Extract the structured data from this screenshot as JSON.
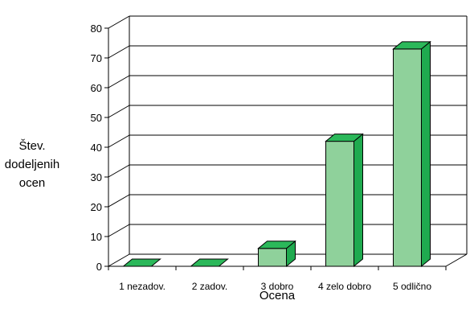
{
  "chart_data": {
    "type": "bar",
    "categories": [
      "1 nezadov.",
      "2 zadov.",
      "3 dobro",
      "4 zelo dobro",
      "5 odlično"
    ],
    "values": [
      0,
      0,
      6,
      42,
      73
    ],
    "xlabel": "Ocena",
    "ylabel": [
      "Štev.",
      "dodeljenih",
      "ocen"
    ],
    "ylim": [
      0,
      80
    ],
    "yticks": [
      0,
      10,
      20,
      30,
      40,
      50,
      60,
      70,
      80
    ],
    "grid": true,
    "three_d": true,
    "colors": {
      "bar_front": "#8fd19b",
      "bar_side": "#1faa4f",
      "bar_top": "#2bb85a",
      "outline": "#000000",
      "grid": "#000000"
    }
  }
}
